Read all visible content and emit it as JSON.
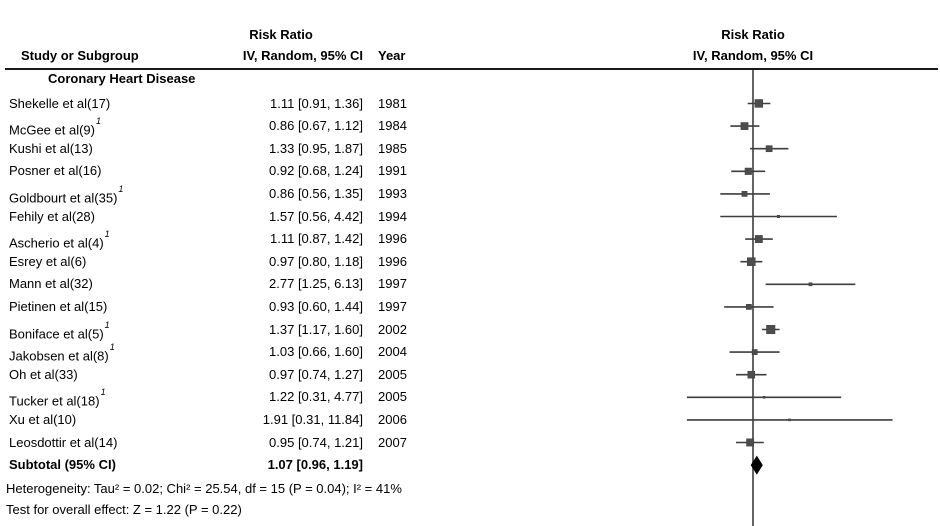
{
  "left_header": {
    "study_col": "Study or Subgroup",
    "effect_line1": "Risk Ratio",
    "effect_line2": "IV, Random, 95% CI",
    "year_col": "Year"
  },
  "right_header": {
    "effect_line1": "Risk Ratio",
    "effect_line2": "IV, Random, 95% CI"
  },
  "chart_data": {
    "type": "forest",
    "effect_measure": "Risk Ratio",
    "model": "IV, Random, 95% CI",
    "scale": "log",
    "null_value": 1.0,
    "subgroup": "Coronary Heart Disease",
    "studies": [
      {
        "name": "Shekelle et al(17)",
        "footnote": "",
        "rr": 1.11,
        "lo": 0.91,
        "hi": 1.36,
        "est": "1.11 [0.91, 1.36]",
        "year": "1981"
      },
      {
        "name": "McGee et al(9)",
        "footnote": "1",
        "rr": 0.86,
        "lo": 0.67,
        "hi": 1.12,
        "est": "0.86 [0.67, 1.12]",
        "year": "1984"
      },
      {
        "name": "Kushi et al(13)",
        "footnote": "",
        "rr": 1.33,
        "lo": 0.95,
        "hi": 1.87,
        "est": "1.33 [0.95, 1.87]",
        "year": "1985"
      },
      {
        "name": "Posner et al(16)",
        "footnote": "",
        "rr": 0.92,
        "lo": 0.68,
        "hi": 1.24,
        "est": "0.92 [0.68, 1.24]",
        "year": "1991"
      },
      {
        "name": "Goldbourt et al(35)",
        "footnote": "1",
        "rr": 0.86,
        "lo": 0.56,
        "hi": 1.35,
        "est": "0.86 [0.56, 1.35]",
        "year": "1993"
      },
      {
        "name": "Fehily et al(28)",
        "footnote": "",
        "rr": 1.57,
        "lo": 0.56,
        "hi": 4.42,
        "est": "1.57 [0.56, 4.42]",
        "year": "1994"
      },
      {
        "name": "Ascherio et al(4)",
        "footnote": "1",
        "rr": 1.11,
        "lo": 0.87,
        "hi": 1.42,
        "est": "1.11 [0.87, 1.42]",
        "year": "1996"
      },
      {
        "name": "Esrey et al(6)",
        "footnote": "",
        "rr": 0.97,
        "lo": 0.8,
        "hi": 1.18,
        "est": "0.97 [0.80, 1.18]",
        "year": "1996"
      },
      {
        "name": "Mann et al(32)",
        "footnote": "",
        "rr": 2.77,
        "lo": 1.25,
        "hi": 6.13,
        "est": "2.77 [1.25, 6.13]",
        "year": "1997"
      },
      {
        "name": "Pietinen et al(15)",
        "footnote": "",
        "rr": 0.93,
        "lo": 0.6,
        "hi": 1.44,
        "est": "0.93 [0.60, 1.44]",
        "year": "1997"
      },
      {
        "name": "Boniface et al(5)",
        "footnote": "1",
        "rr": 1.37,
        "lo": 1.17,
        "hi": 1.6,
        "est": "1.37 [1.17, 1.60]",
        "year": "2002"
      },
      {
        "name": "Jakobsen et al(8)",
        "footnote": "1",
        "rr": 1.03,
        "lo": 0.66,
        "hi": 1.6,
        "est": "1.03 [0.66, 1.60]",
        "year": "2004"
      },
      {
        "name": "Oh et al(33)",
        "footnote": "",
        "rr": 0.97,
        "lo": 0.74,
        "hi": 1.27,
        "est": "0.97 [0.74, 1.27]",
        "year": "2005"
      },
      {
        "name": "Tucker et al(18)",
        "footnote": "1",
        "rr": 1.22,
        "lo": 0.31,
        "hi": 4.77,
        "est": "1.22 [0.31, 4.77]",
        "year": "2005"
      },
      {
        "name": "Xu et al(10)",
        "footnote": "",
        "rr": 1.91,
        "lo": 0.31,
        "hi": 11.84,
        "est": "1.91 [0.31, 11.84]",
        "year": "2006"
      },
      {
        "name": "Leosdottir et al(14)",
        "footnote": "",
        "rr": 0.95,
        "lo": 0.74,
        "hi": 1.21,
        "est": "0.95 [0.74, 1.21]",
        "year": "2007"
      }
    ],
    "subtotal": {
      "label": "Subtotal (95% CI)",
      "rr": 1.07,
      "lo": 0.96,
      "hi": 1.19,
      "est": "1.07 [0.96, 1.19]"
    },
    "heterogeneity": "Heterogeneity: Tau² = 0.02; Chi² = 25.54, df = 15 (P = 0.04); I² = 41%",
    "overall_effect": "Test for overall effect: Z = 1.22 (P = 0.22)",
    "tau2": 0.02,
    "colors": {
      "text": "#000000",
      "line": "#3d3d3d",
      "marker": "#4d4d4d",
      "diamond": "#000000",
      "rule": "#1a1a1a"
    }
  }
}
